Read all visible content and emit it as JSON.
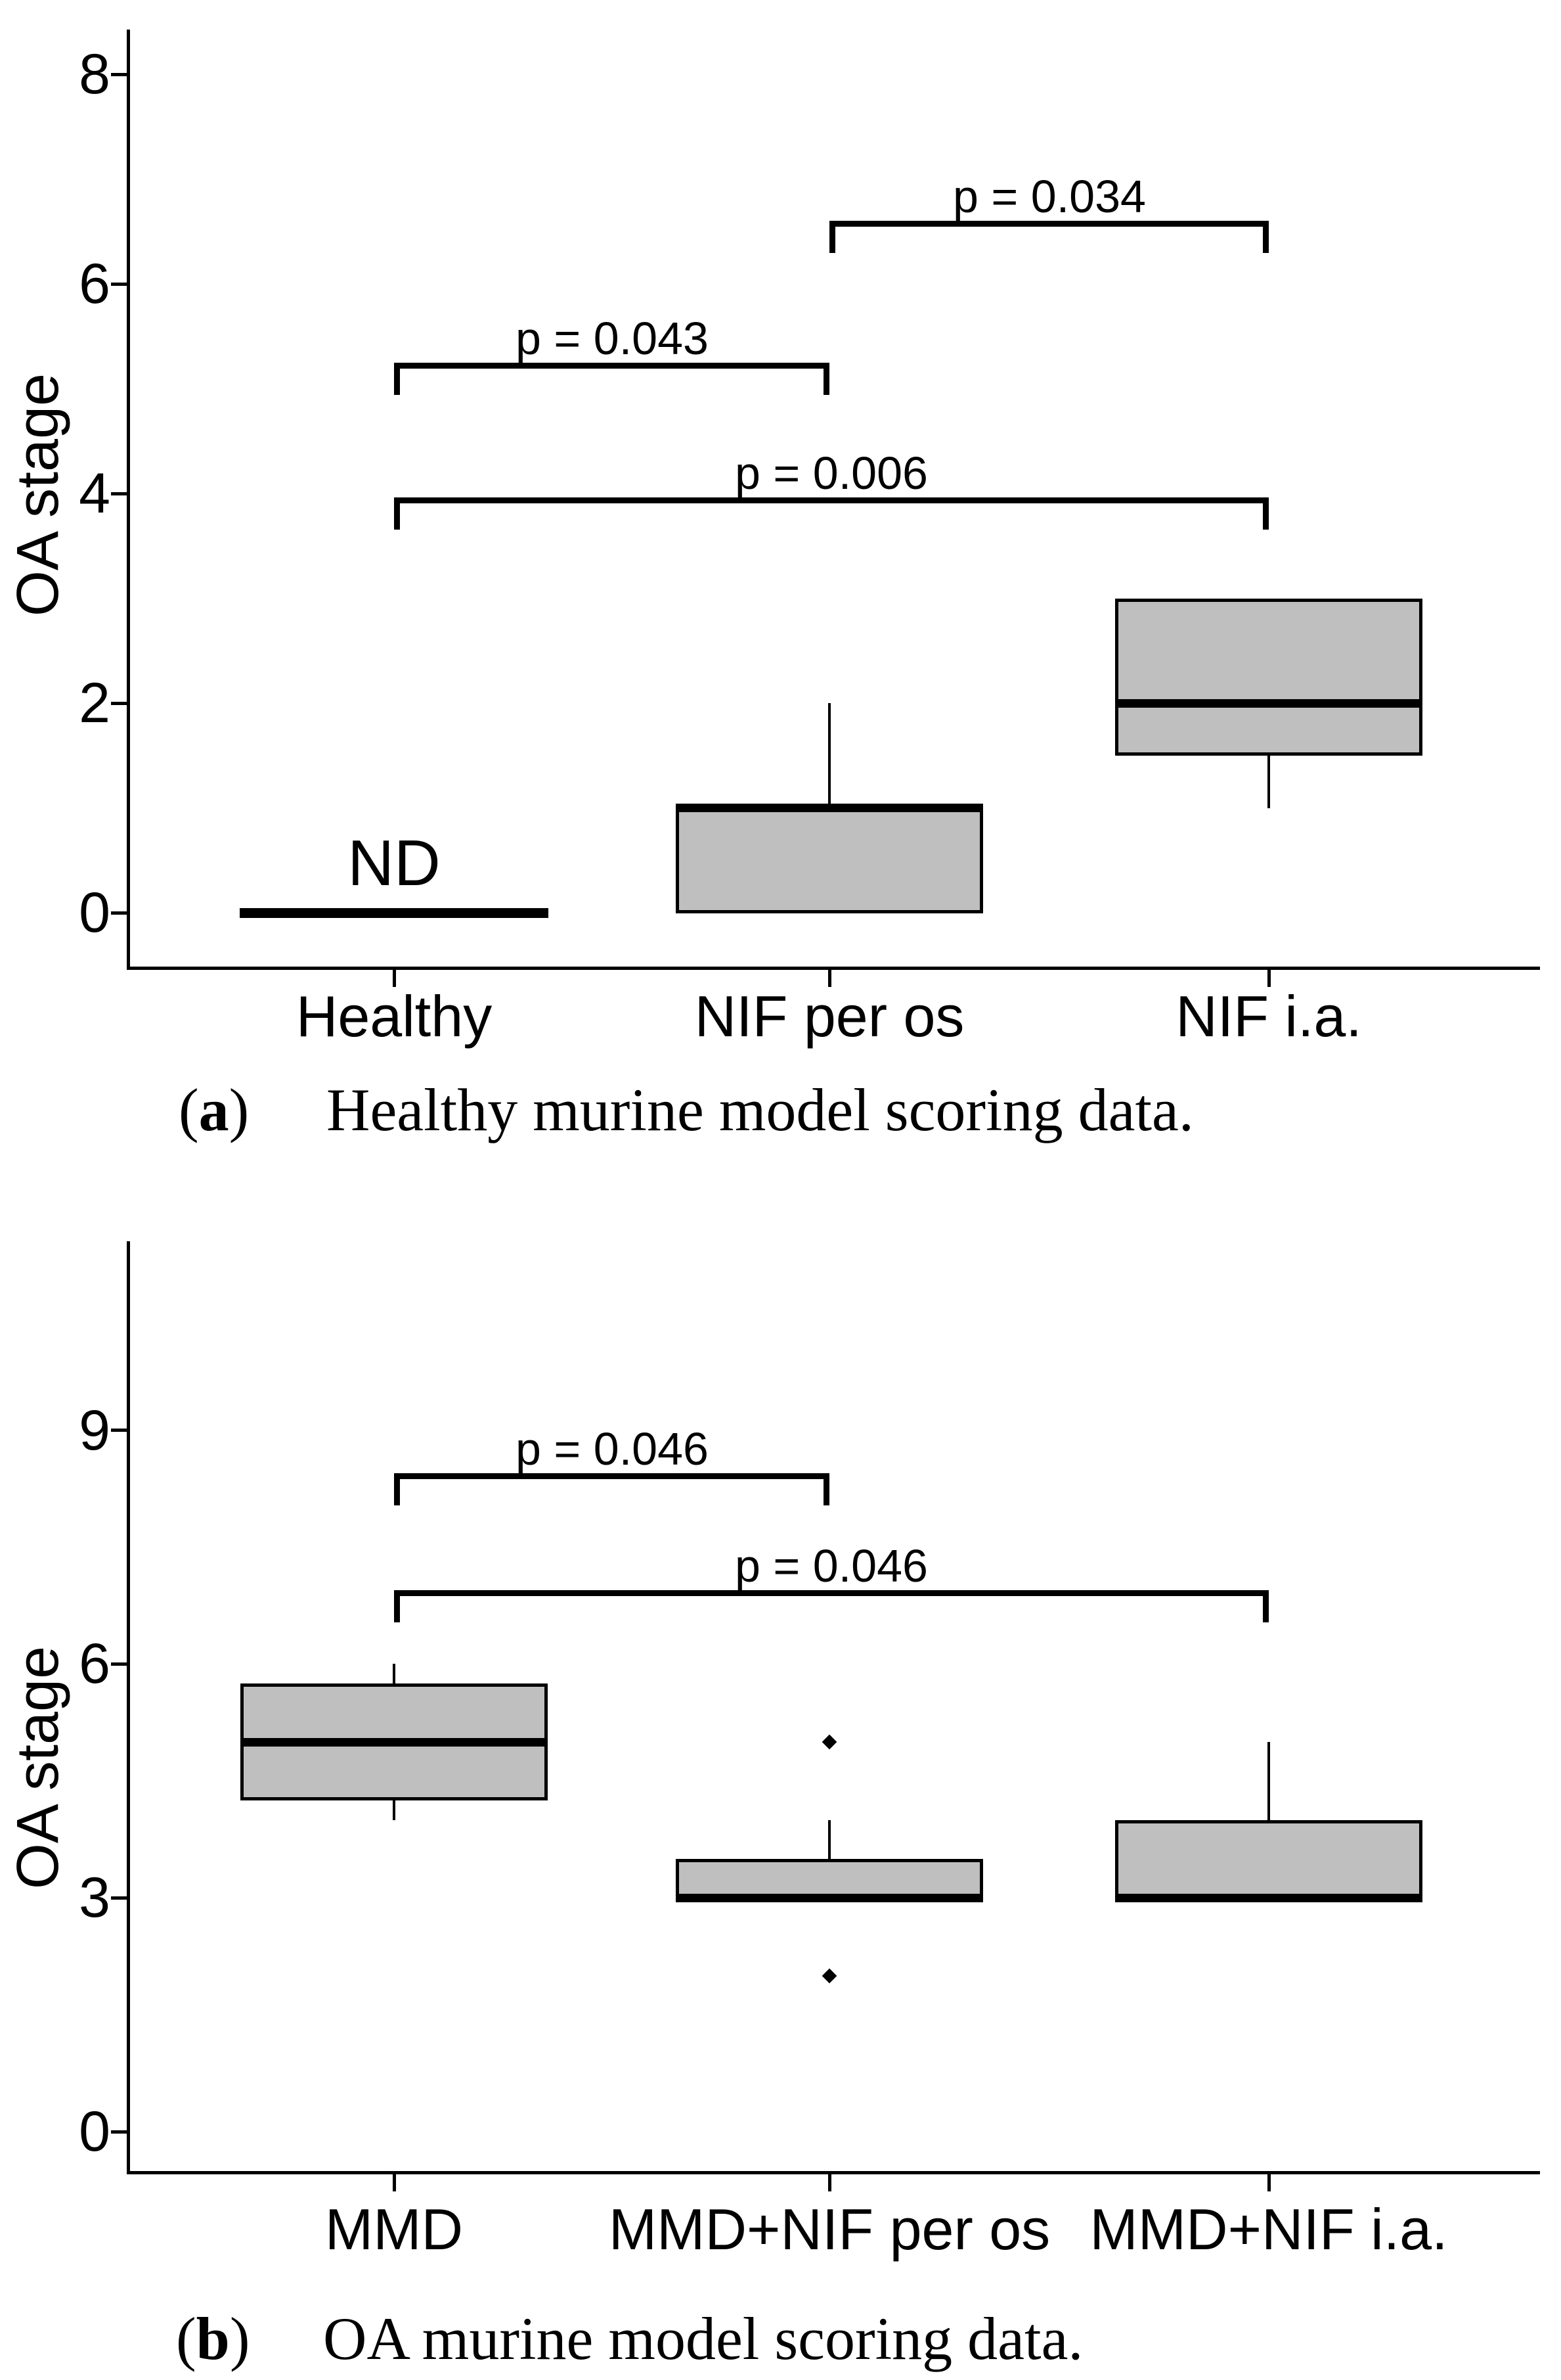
{
  "style": {
    "background": "#ffffff",
    "box_fill": "#bfbfbf",
    "line_color": "#000000",
    "text_color": "#000000"
  },
  "chart_data": [
    {
      "type": "box",
      "panel": "a",
      "title": "",
      "xlabel": "",
      "ylabel": "OA stage",
      "yticks": [
        0,
        2,
        4,
        6,
        8
      ],
      "ylim": [
        -0.55,
        8.45
      ],
      "grid": false,
      "legend": "none",
      "categories": [
        "Healthy",
        "NIF per os",
        "NIF i.a."
      ],
      "series": [
        {
          "category": "Healthy",
          "style": "median-line-only",
          "median": 0,
          "annotation": "ND",
          "outliers": []
        },
        {
          "category": "NIF per os",
          "style": "box",
          "q1": 0,
          "median": 1,
          "q3": 1,
          "whisker_low": 0,
          "whisker_high": 2,
          "outliers": []
        },
        {
          "category": "NIF i.a.",
          "style": "box",
          "q1": 1.5,
          "median": 2,
          "q3": 3,
          "whisker_low": 1,
          "whisker_high": 3,
          "outliers": []
        }
      ],
      "significance_brackets": [
        {
          "group1": "Healthy",
          "group2": "NIF per os",
          "label": "p = 0.043",
          "y": 5.25
        },
        {
          "group1": "NIF per os",
          "group2": "NIF i.a.",
          "label": "p = 0.034",
          "y": 6.6
        },
        {
          "group1": "Healthy",
          "group2": "NIF i.a.",
          "label": "p = 0.006",
          "y": 3.96
        }
      ],
      "caption_tag": "a",
      "caption": "Healthy murine model scoring data."
    },
    {
      "type": "box",
      "panel": "b",
      "title": "",
      "xlabel": "",
      "ylabel": "OA stage",
      "yticks": [
        0,
        3,
        6,
        9
      ],
      "ylim": [
        -0.55,
        11.4
      ],
      "grid": false,
      "legend": "none",
      "categories": [
        "MMD",
        "MMD+NIF per os",
        "MMD+NIF i.a."
      ],
      "series": [
        {
          "category": "MMD",
          "style": "box",
          "q1": 4.25,
          "median": 5,
          "q3": 5.75,
          "whisker_low": 4,
          "whisker_high": 6,
          "outliers": []
        },
        {
          "category": "MMD+NIF per os",
          "style": "box",
          "q1": 3,
          "median": 3,
          "q3": 3.5,
          "whisker_low": 3,
          "whisker_high": 4,
          "outliers": [
            5,
            2
          ]
        },
        {
          "category": "MMD+NIF i.a.",
          "style": "box",
          "q1": 3,
          "median": 3,
          "q3": 4,
          "whisker_low": 3,
          "whisker_high": 5,
          "outliers": []
        }
      ],
      "significance_brackets": [
        {
          "group1": "MMD",
          "group2": "MMD+NIF per os",
          "label": "p = 0.046",
          "y": 8.45
        },
        {
          "group1": "MMD",
          "group2": "MMD+NIF i.a.",
          "label": "p = 0.046",
          "y": 6.95
        }
      ],
      "caption_tag": "b",
      "caption": "OA murine model scoring data."
    }
  ]
}
